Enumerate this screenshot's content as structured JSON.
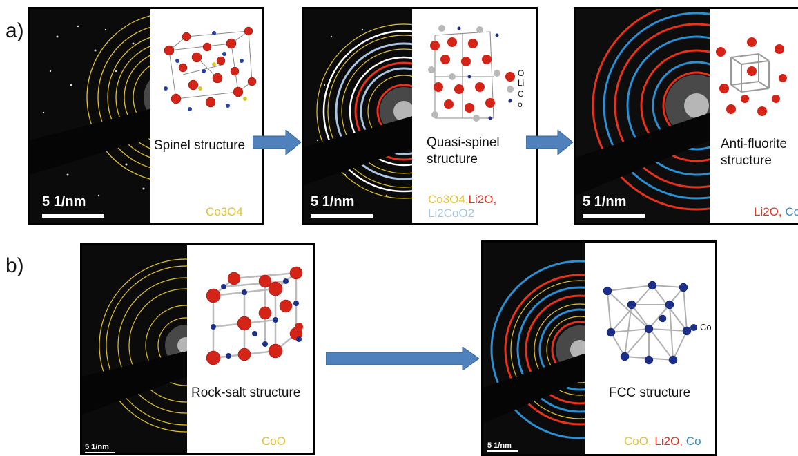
{
  "row_labels": [
    "a)",
    "b)"
  ],
  "scale_bar": "5 1/nm",
  "colors": {
    "yellow": "#e2c32e",
    "red": "#e8321c",
    "blue": "#2b8fd4",
    "pale_blue": "#a9c3e0",
    "arrow_blue": "#4f81bd"
  },
  "panels": [
    {
      "id": "spinel",
      "structure": "Spinel structure",
      "composition": [
        {
          "text": "Co3O4",
          "color": "#e2c32e"
        }
      ]
    },
    {
      "id": "quasi-spinel",
      "structure": "Quasi-spinel\nstructure",
      "composition": [
        {
          "text": "Co3O4,",
          "color": "#e2c32e"
        },
        {
          "text": "Li2O,",
          "color": "#e8321c"
        },
        {
          "text": "Li2CoO2",
          "color": "#a9c3e0"
        }
      ],
      "legend": [
        "O",
        "Li",
        "C",
        "o"
      ]
    },
    {
      "id": "anti-fluorite",
      "structure": "Anti-fluorite\nstructure",
      "composition": [
        {
          "text": "Li2O,",
          "color": "#e8321c"
        },
        {
          "text": "Co",
          "color": "#2b8fd4"
        }
      ]
    },
    {
      "id": "rock-salt",
      "structure": "Rock-salt structure",
      "composition": [
        {
          "text": "CoO",
          "color": "#e2c32e"
        }
      ]
    },
    {
      "id": "fcc",
      "structure": "FCC structure",
      "composition": [
        {
          "text": "CoO,",
          "color": "#e2c32e"
        },
        {
          "text": "Li2O,",
          "color": "#e8321c"
        },
        {
          "text": "Co",
          "color": "#2b8fd4"
        }
      ],
      "legend": [
        "Co"
      ]
    }
  ]
}
